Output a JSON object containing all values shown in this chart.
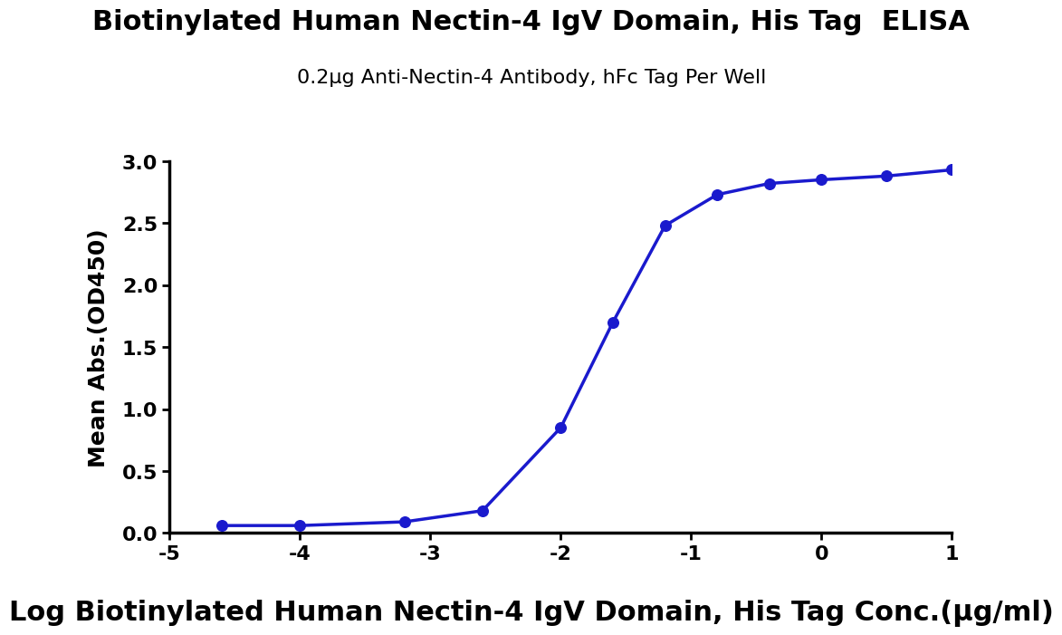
{
  "title": "Biotinylated Human Nectin-4 IgV Domain, His Tag  ELISA",
  "subtitle": "0.2μg Anti-Nectin-4 Antibody, hFc Tag Per Well",
  "xlabel": "Log Biotinylated Human Nectin-4 IgV Domain, His Tag Conc.(μg/ml)",
  "ylabel": "Mean Abs.(OD450)",
  "data_x": [
    -4.6,
    -4.0,
    -3.2,
    -2.6,
    -2.0,
    -1.6,
    -1.2,
    -0.8,
    -0.4,
    0.0,
    0.5,
    1.0
  ],
  "data_y": [
    0.06,
    0.06,
    0.09,
    0.18,
    0.85,
    1.7,
    2.48,
    2.73,
    2.82,
    2.85,
    2.88,
    2.93
  ],
  "line_color": "#1a1acd",
  "dot_color": "#1a1acd",
  "xlim": [
    -5,
    1
  ],
  "ylim": [
    0,
    3.0
  ],
  "xticks": [
    -5,
    -4,
    -3,
    -2,
    -1,
    0,
    1
  ],
  "yticks": [
    0.0,
    0.5,
    1.0,
    1.5,
    2.0,
    2.5,
    3.0
  ],
  "title_fontsize": 22,
  "subtitle_fontsize": 16,
  "xlabel_fontsize": 22,
  "ylabel_fontsize": 18,
  "tick_fontsize": 16,
  "background_color": "#ffffff",
  "dot_size": 70,
  "line_width": 2.5
}
